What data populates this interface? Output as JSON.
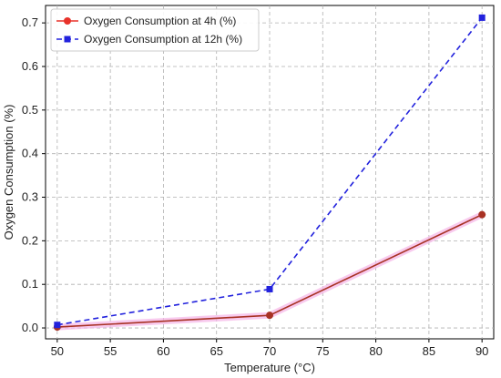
{
  "chart_data": {
    "type": "line",
    "xlabel": "Temperature (°C)",
    "ylabel": "Oxygen Consumption (%)",
    "xlim": [
      48.9,
      91.1
    ],
    "ylim": [
      -0.025,
      0.74
    ],
    "xticks": [
      50,
      55,
      60,
      65,
      70,
      75,
      80,
      85,
      90
    ],
    "yticks": [
      0.0,
      0.1,
      0.2,
      0.3,
      0.4,
      0.5,
      0.6,
      0.7
    ],
    "ytick_labels": [
      "0.0",
      "0.1",
      "0.2",
      "0.3",
      "0.4",
      "0.5",
      "0.6",
      "0.7"
    ],
    "grid": true,
    "legend_position": "top-left",
    "series": [
      {
        "name": "Oxygen Consumption at 4h (%)",
        "x": [
          50,
          70,
          90
        ],
        "values": [
          0.002,
          0.029,
          0.26
        ],
        "color": "#a83224",
        "legend_color": "#e8322a",
        "marker": "circle",
        "linestyle": "solid",
        "band_color": "#f5b8e8"
      },
      {
        "name": "Oxygen Consumption at 12h (%)",
        "x": [
          50,
          70,
          90
        ],
        "values": [
          0.007,
          0.089,
          0.712
        ],
        "color": "#2222dd",
        "legend_color": "#2222dd",
        "marker": "square",
        "linestyle": "dashed"
      }
    ]
  }
}
